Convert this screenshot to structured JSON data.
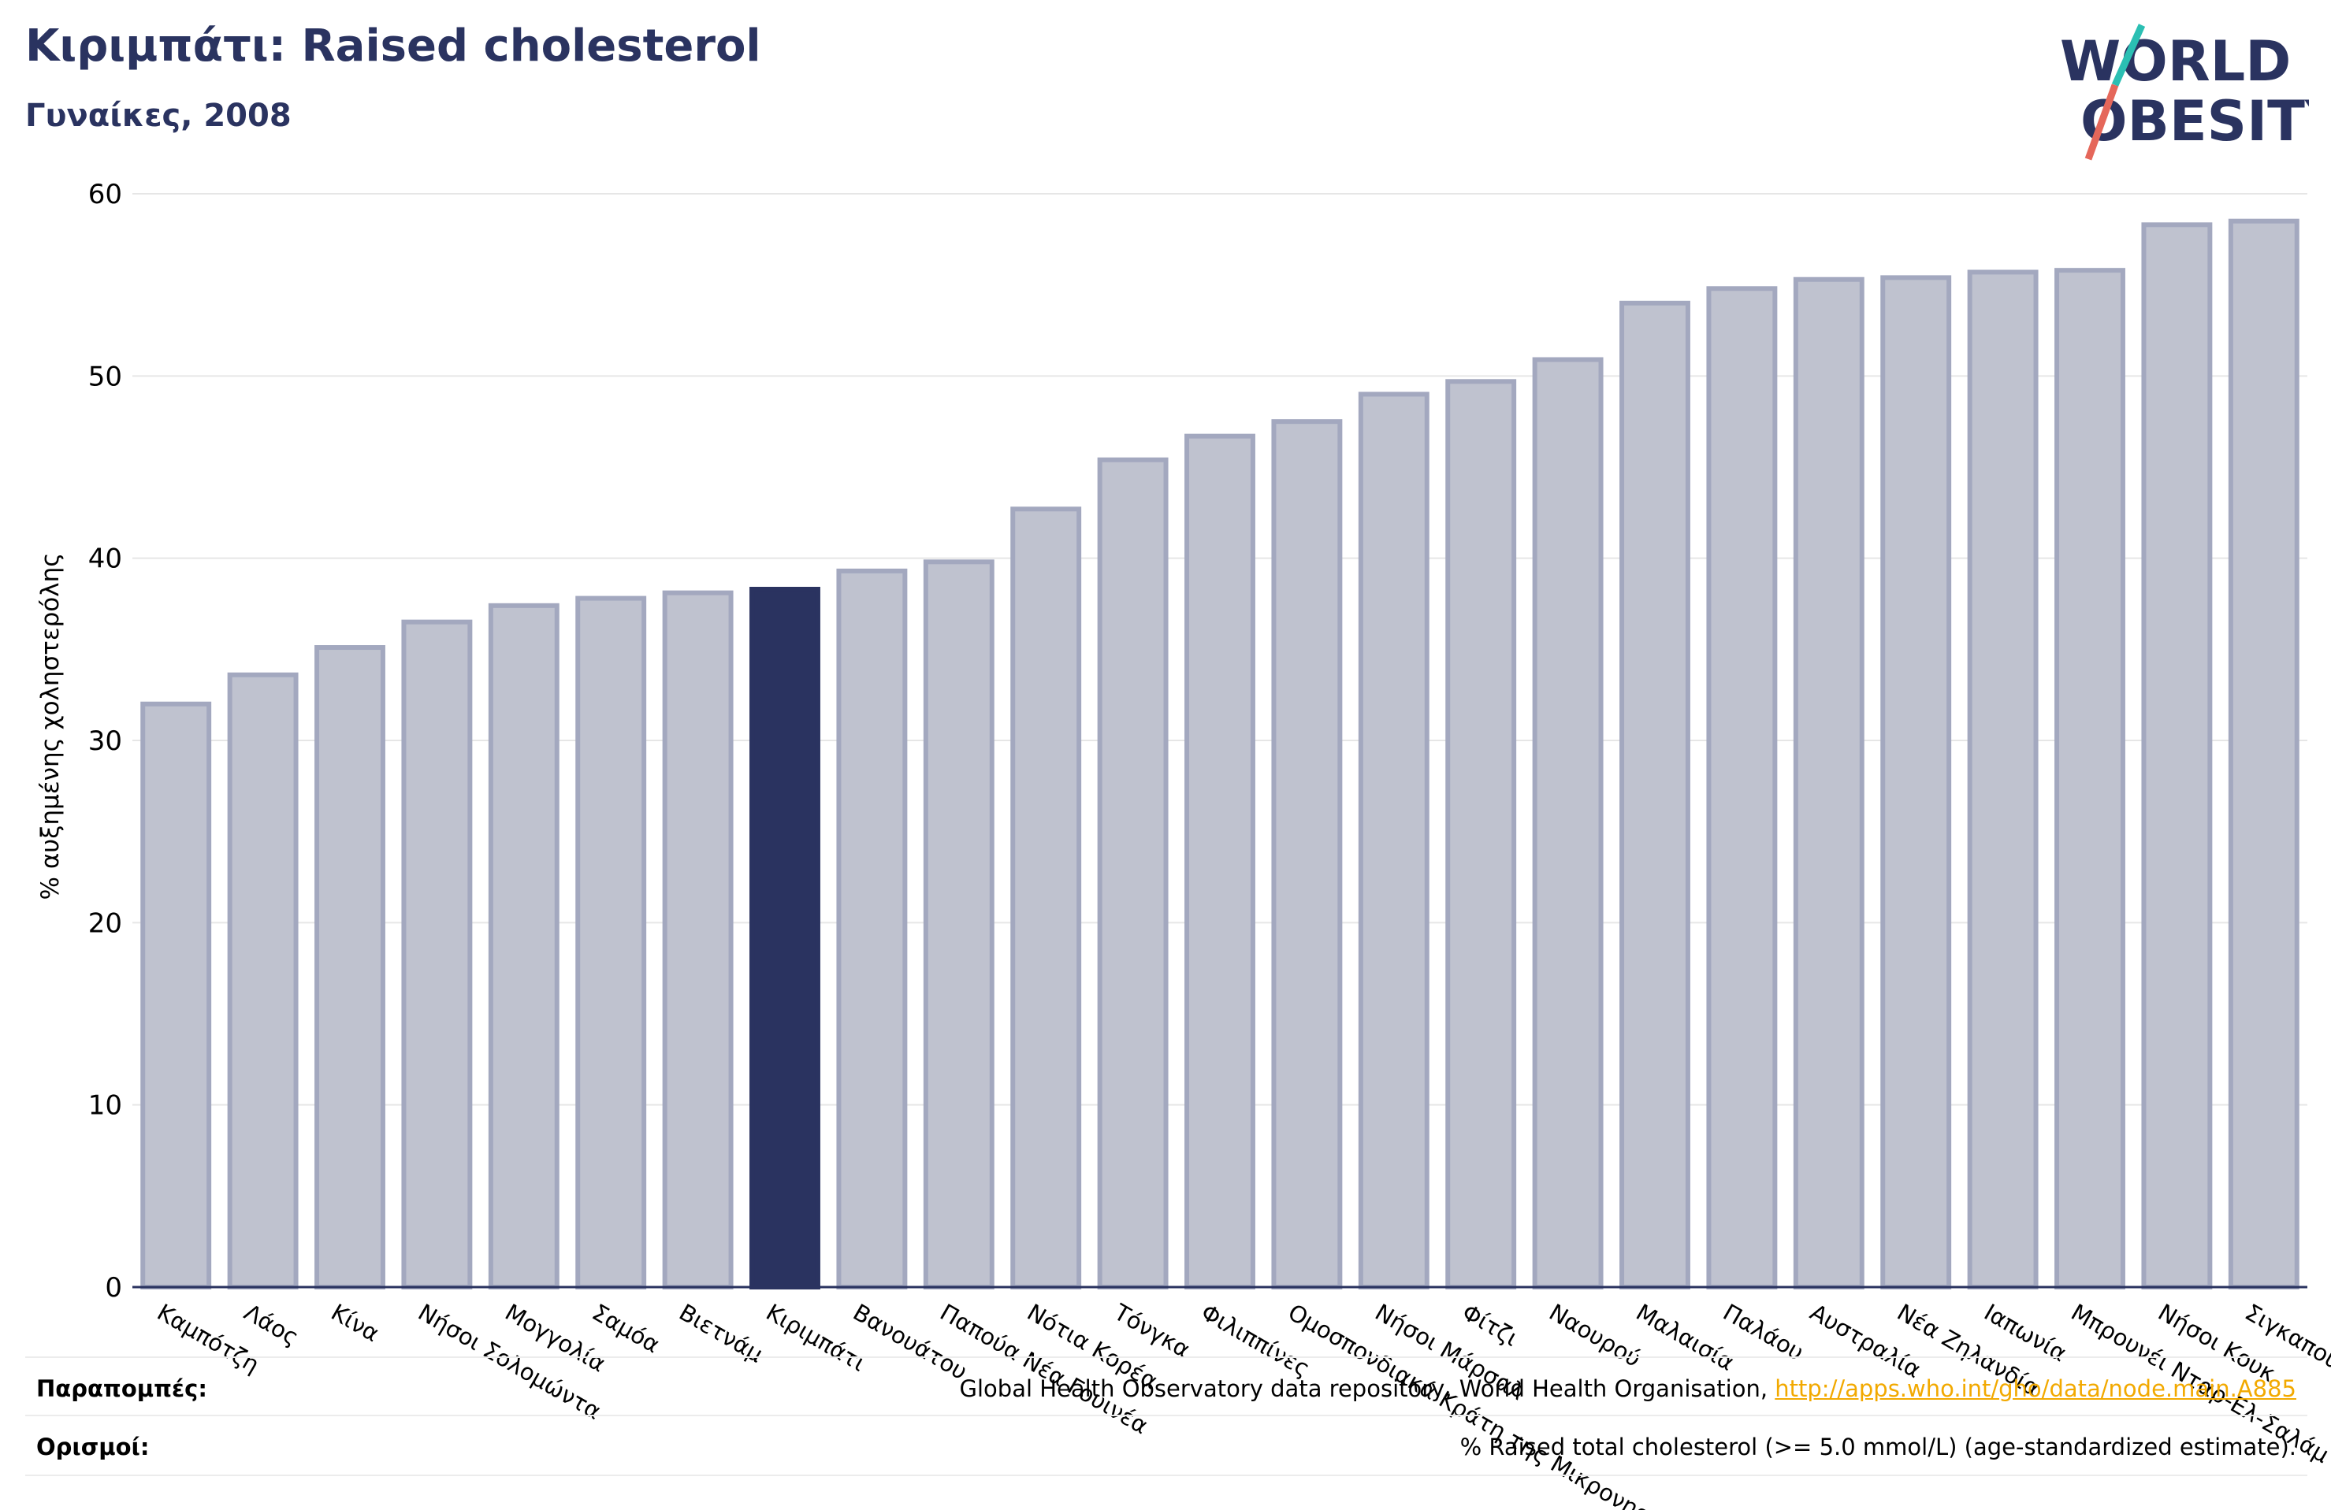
{
  "header": {
    "title": "Κιριμπάτι: Raised cholesterol",
    "subtitle": "Γυναίκες, 2008",
    "logo_line1": "WORLD",
    "logo_line2": "OBESITY"
  },
  "colors": {
    "title": "#2a3360",
    "bar": "#bfc2cf",
    "bar_edge": "#a3a8bf",
    "highlight": "#2a3360",
    "link": "#f2a900",
    "logo_slash_top": "#2bbfb3",
    "logo_slash_bottom": "#e5675a"
  },
  "chart_data": {
    "type": "bar",
    "title": "Κιριμπάτι: Raised cholesterol",
    "subtitle": "Γυναίκες, 2008",
    "ylabel": "% αυξημένης χοληστερόλης",
    "xlabel": "",
    "ylim": [
      0,
      60
    ],
    "yticks": [
      0,
      10,
      20,
      30,
      40,
      50,
      60
    ],
    "grid": true,
    "highlight": "Κιριμπάτι",
    "categories": [
      "Καμπότζη",
      "Λάος",
      "Κίνα",
      "Νήσοι Σολομώντα",
      "Μογγολία",
      "Σαμόα",
      "Βιετνάμ",
      "Κιριμπάτι",
      "Βανουάτου",
      "Παπούα Νέα Γουινέα",
      "Νότια Κορέα",
      "Τόνγκα",
      "Φιλιππίνες",
      "Ομοσπονδιακά Κράτη της Μικρονησίας",
      "Νήσοι Μάρσαλ",
      "Φίτζι",
      "Ναουρού",
      "Μαλαισία",
      "Παλάου",
      "Αυστραλία",
      "Νέα Ζηλανδία",
      "Ιαπωνία",
      "Μπρουνέι Νταρ-Ελ-Σαλάμ",
      "Νήσοι Κουκ",
      "Σιγκαπούρη"
    ],
    "values": [
      32.0,
      33.6,
      35.1,
      36.5,
      37.4,
      37.8,
      38.1,
      38.3,
      39.3,
      39.8,
      42.7,
      45.4,
      46.7,
      47.5,
      49.0,
      49.7,
      50.9,
      54.0,
      54.8,
      55.3,
      55.4,
      55.7,
      55.8,
      58.3,
      58.5
    ]
  },
  "footer": {
    "references_label": "Παραπομπές:",
    "references_text": "Global Health Observatory data repository, World Health Organisation, ",
    "references_link": "http://apps.who.int/gho/data/node.main.A885",
    "definitions_label": "Ορισμοί:",
    "definitions_text": "% Raised total cholesterol (>= 5.0 mmol/L) (age-standardized estimate)."
  }
}
